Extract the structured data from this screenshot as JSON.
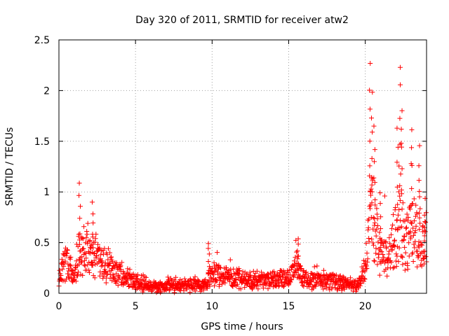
{
  "chart_data": {
    "type": "scatter",
    "title": "Day 320 of 2011, SRMTID for receiver atw2",
    "xlabel": "GPS time / hours",
    "ylabel": "SRMTID / TECUs",
    "xlim": [
      0,
      24
    ],
    "ylim": [
      0,
      2.5
    ],
    "x_ticks": [
      0,
      5,
      10,
      15,
      20
    ],
    "x_tick_labels": [
      "0",
      "5",
      "10",
      "15",
      "20"
    ],
    "y_ticks": [
      0,
      0.5,
      1,
      1.5,
      2,
      2.5
    ],
    "y_tick_labels": [
      "0",
      "0.5",
      "1",
      "1.5",
      "2",
      "2.5"
    ],
    "grid": true,
    "marker": "+",
    "color": "#ff0000",
    "series": [
      {
        "name": "SRMTID",
        "envelope_x": [
          0,
          0.3,
          0.5,
          1.0,
          1.3,
          1.5,
          2.0,
          2.3,
          2.8,
          3.5,
          4.5,
          5.5,
          6.5,
          7.5,
          8.5,
          9.5,
          10.0,
          11.0,
          12.0,
          13.0,
          14.0,
          15.0,
          15.5,
          16.0,
          17.0,
          18.0,
          19.0,
          19.5,
          20.0,
          20.2,
          20.4,
          20.7,
          21.0,
          21.5,
          22.0,
          22.3,
          22.6,
          23.0,
          23.3,
          23.6,
          24.0
        ],
        "envelope_y": [
          0.15,
          0.35,
          0.4,
          0.2,
          0.5,
          0.45,
          0.55,
          0.45,
          0.4,
          0.3,
          0.2,
          0.1,
          0.08,
          0.1,
          0.1,
          0.1,
          0.25,
          0.2,
          0.18,
          0.15,
          0.18,
          0.2,
          0.35,
          0.18,
          0.15,
          0.15,
          0.12,
          0.1,
          0.3,
          0.7,
          1.1,
          0.8,
          0.45,
          0.5,
          0.7,
          1.0,
          0.6,
          0.8,
          0.75,
          0.6,
          0.6
        ],
        "spikes": [
          {
            "x": 1.35,
            "y": 1.12
          },
          {
            "x": 2.2,
            "y": 0.9
          },
          {
            "x": 9.8,
            "y": 0.5
          },
          {
            "x": 15.6,
            "y": 0.55
          },
          {
            "x": 20.3,
            "y": 2.38
          },
          {
            "x": 20.45,
            "y": 2.05
          },
          {
            "x": 20.6,
            "y": 1.68
          },
          {
            "x": 21.0,
            "y": 1.0
          },
          {
            "x": 22.1,
            "y": 1.68
          },
          {
            "x": 22.25,
            "y": 2.33
          },
          {
            "x": 22.4,
            "y": 1.85
          },
          {
            "x": 23.0,
            "y": 1.62
          },
          {
            "x": 23.5,
            "y": 1.47
          },
          {
            "x": 23.9,
            "y": 0.8
          }
        ]
      }
    ]
  }
}
